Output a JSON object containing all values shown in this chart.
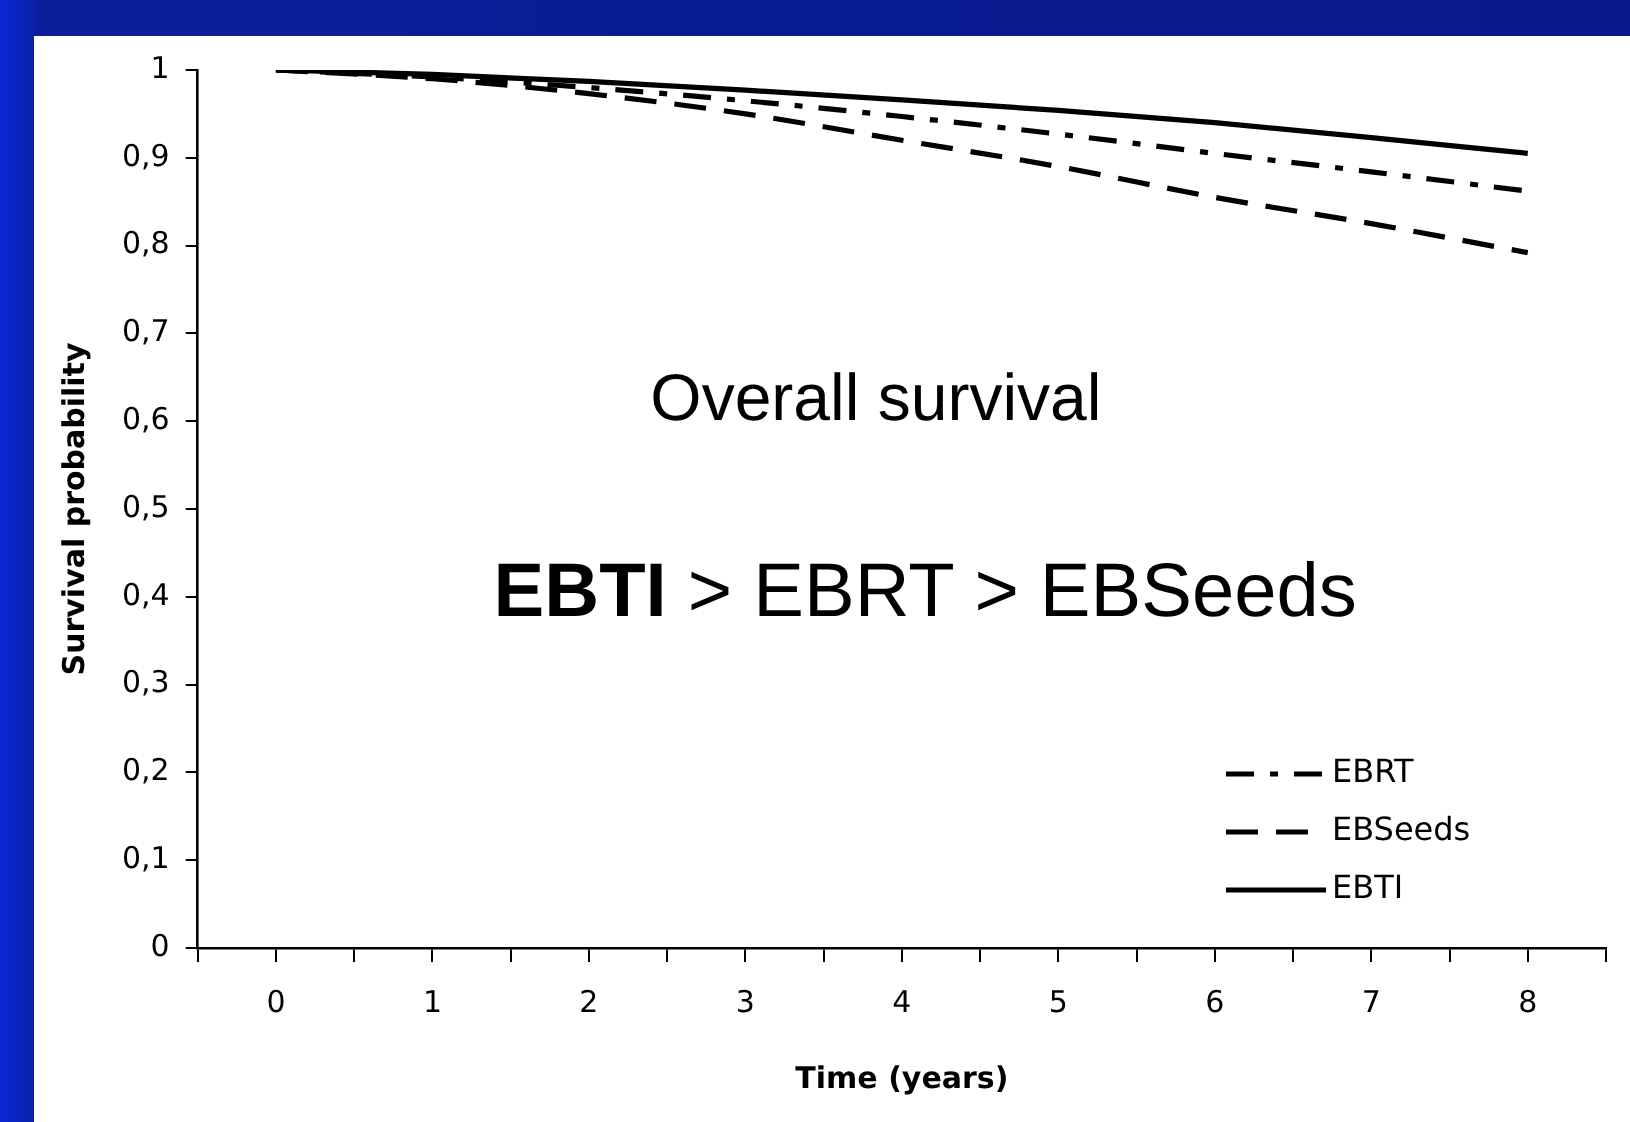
{
  "chart_data": {
    "type": "line",
    "x": [
      0,
      1,
      2,
      3,
      4,
      5,
      6,
      7,
      8
    ],
    "series": [
      {
        "name": "EBRT",
        "color": "#000000",
        "line_style": "dashdot",
        "values": [
          1,
          0.992,
          0.98,
          0.965,
          0.947,
          0.927,
          0.905,
          0.884,
          0.862
        ]
      },
      {
        "name": "EBSeeds",
        "color": "#000000",
        "line_style": "dashed",
        "values": [
          1,
          0.99,
          0.973,
          0.95,
          0.92,
          0.89,
          0.855,
          0.825,
          0.792
        ]
      },
      {
        "name": "EBTI",
        "color": "#000000",
        "line_style": "solid",
        "values": [
          1,
          0.995,
          0.987,
          0.977,
          0.966,
          0.954,
          0.94,
          0.923,
          0.905
        ]
      }
    ],
    "xlabel": "Time (years)",
    "ylabel": "Survival probability",
    "xlim": [
      -0.5,
      8.5
    ],
    "xticks": [
      {
        "value": -0.5,
        "label": null
      },
      0,
      {
        "value": 0.5,
        "label": null
      },
      1,
      {
        "value": 1.5,
        "label": null
      },
      2,
      {
        "value": 2.5,
        "label": null
      },
      3,
      {
        "value": 3.5,
        "label": null
      },
      4,
      {
        "value": 4.5,
        "label": null
      },
      5,
      {
        "value": 5.5,
        "label": null
      },
      6,
      {
        "value": 6.5,
        "label": null
      },
      7,
      {
        "value": 7.5,
        "label": null
      },
      8,
      {
        "value": 8.5,
        "label": null
      }
    ],
    "ylim": [
      0,
      1
    ],
    "yticks": [
      {
        "value": 0,
        "label": "0"
      },
      {
        "value": 0.1,
        "label": "0,1"
      },
      {
        "value": 0.2,
        "label": "0,2"
      },
      {
        "value": 0.3,
        "label": "0,3"
      },
      {
        "value": 0.4,
        "label": "0,4"
      },
      {
        "value": 0.5,
        "label": "0,5"
      },
      {
        "value": 0.6,
        "label": "0,6"
      },
      {
        "value": 0.7,
        "label": "0,7"
      },
      {
        "value": 0.8,
        "label": "0,8"
      },
      {
        "value": 0.9,
        "label": "0,9"
      },
      {
        "value": 1,
        "label": "1"
      }
    ],
    "annotations": [
      "Overall survival",
      "EBTI > EBRT > EBSeeds"
    ],
    "legend": "bottom right",
    "grid": false,
    "marker": "none"
  }
}
